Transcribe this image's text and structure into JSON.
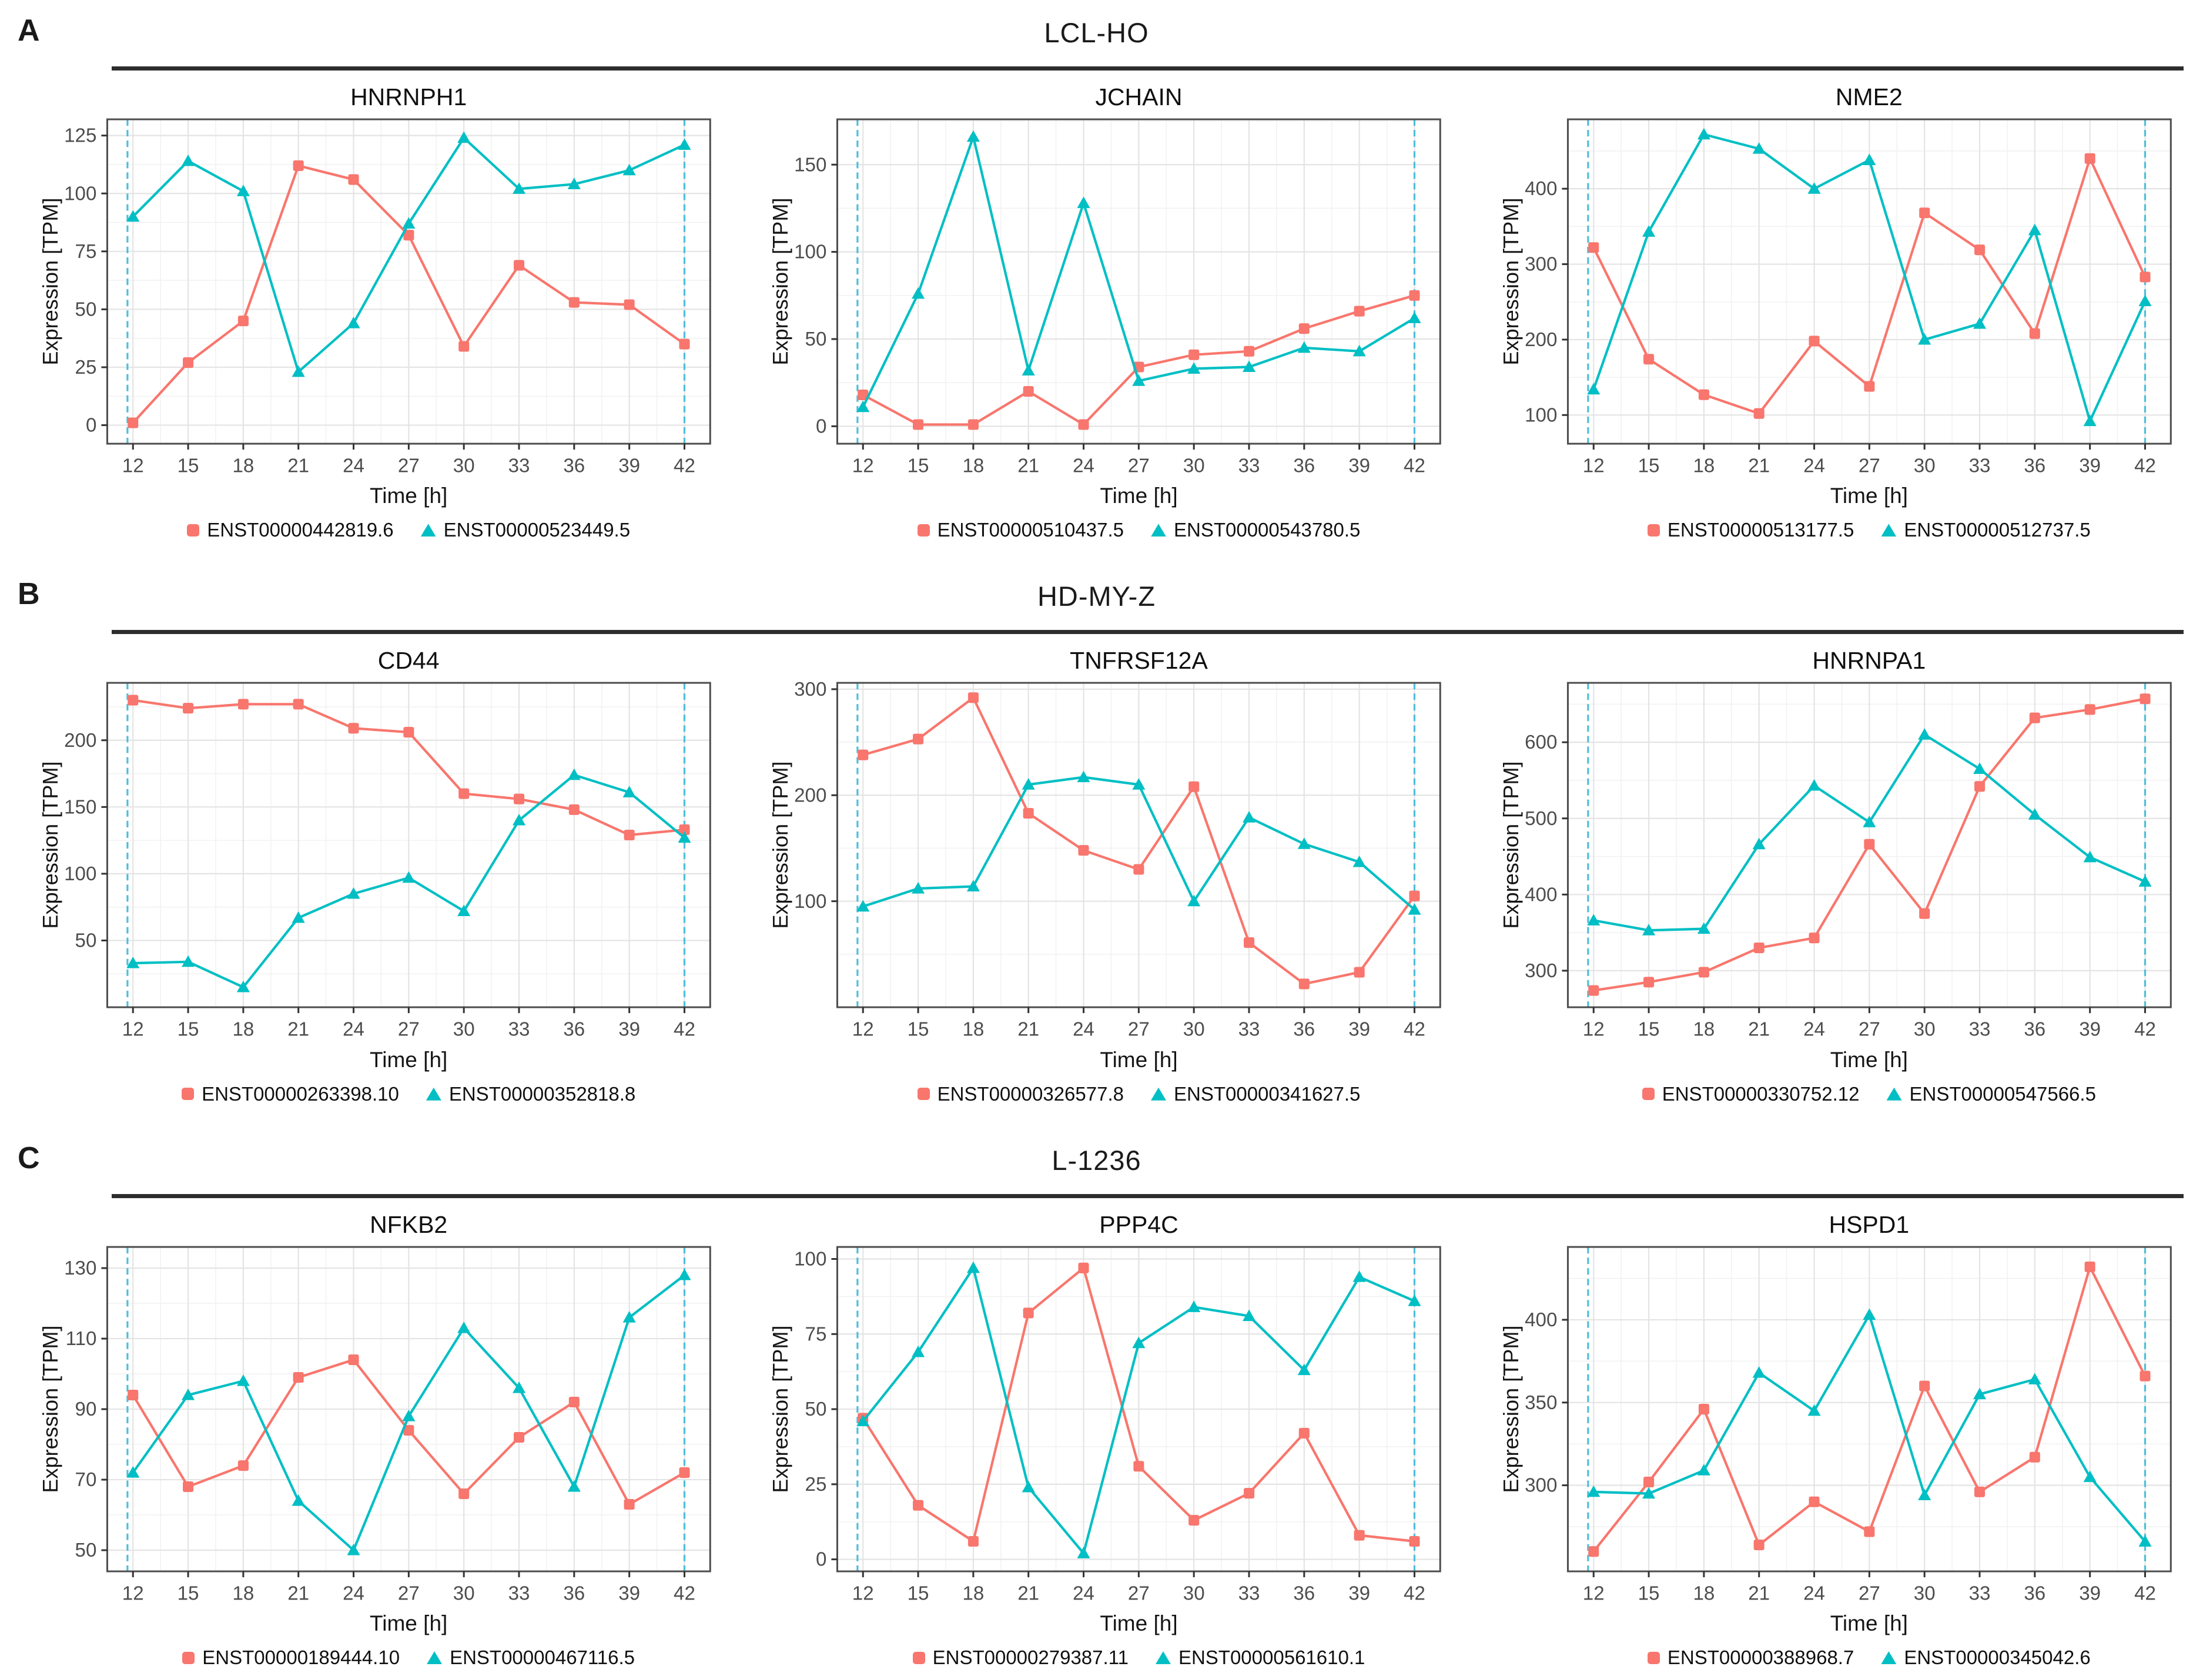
{
  "figure": {
    "panels": [
      {
        "letter": "A",
        "cell_line": "LCL-HO"
      },
      {
        "letter": "B",
        "cell_line": "HD-MY-Z"
      },
      {
        "letter": "C",
        "cell_line": "L-1236"
      }
    ]
  },
  "colors": {
    "red": "#F8766D",
    "teal": "#00BFC4",
    "vline": "#4FBEDB",
    "grid_major": "#E4E4E4",
    "grid_minor": "#F2F2F2",
    "border": "#4D4D4D",
    "tick": "#333333",
    "tick_label": "#4D4D4D",
    "axis_label": "#151515"
  },
  "chart_data": [
    {
      "type": "line",
      "panel": "A",
      "title": "HNRNPH1",
      "xlabel": "Time [h]",
      "ylabel": "Expression [TPM]",
      "x": [
        12,
        15,
        18,
        21,
        24,
        27,
        30,
        33,
        36,
        39,
        42
      ],
      "xticks": [
        12,
        15,
        18,
        21,
        24,
        27,
        30,
        33,
        36,
        39,
        42
      ],
      "xdomain": [
        10.6,
        43.4
      ],
      "yticks": [
        0,
        25,
        50,
        75,
        100,
        125
      ],
      "ylim": [
        -8,
        132
      ],
      "vlines": [
        11.7,
        42
      ],
      "series": [
        {
          "name": "ENST00000442819.6",
          "color": "#F8766D",
          "marker": "square",
          "values": [
            1,
            27,
            45,
            112,
            106,
            82,
            34,
            69,
            53,
            52,
            35
          ]
        },
        {
          "name": "ENST00000523449.5",
          "color": "#00BFC4",
          "marker": "triangle",
          "values": [
            90,
            114,
            101,
            23,
            44,
            87,
            124,
            102,
            104,
            110,
            121
          ]
        }
      ]
    },
    {
      "type": "line",
      "panel": "A",
      "title": "JCHAIN",
      "xlabel": "Time [h]",
      "ylabel": "Expression [TPM]",
      "x": [
        12,
        15,
        18,
        21,
        24,
        27,
        30,
        33,
        36,
        39,
        42
      ],
      "xticks": [
        12,
        15,
        18,
        21,
        24,
        27,
        30,
        33,
        36,
        39,
        42
      ],
      "xdomain": [
        10.6,
        43.4
      ],
      "yticks": [
        0,
        50,
        100,
        150
      ],
      "ylim": [
        -10,
        176
      ],
      "vlines": [
        11.7,
        42
      ],
      "series": [
        {
          "name": "ENST00000510437.5",
          "color": "#F8766D",
          "marker": "square",
          "values": [
            18,
            1,
            1,
            20,
            1,
            34,
            41,
            43,
            56,
            66,
            75
          ]
        },
        {
          "name": "ENST00000543780.5",
          "color": "#00BFC4",
          "marker": "triangle",
          "values": [
            11,
            76,
            166,
            32,
            128,
            26,
            33,
            34,
            45,
            43,
            62
          ]
        }
      ]
    },
    {
      "type": "line",
      "panel": "A",
      "title": "NME2",
      "xlabel": "Time [h]",
      "ylabel": "Expression [TPM]",
      "x": [
        12,
        15,
        18,
        21,
        24,
        27,
        30,
        33,
        36,
        39,
        42
      ],
      "xticks": [
        12,
        15,
        18,
        21,
        24,
        27,
        30,
        33,
        36,
        39,
        42
      ],
      "xdomain": [
        10.6,
        43.4
      ],
      "yticks": [
        100,
        200,
        300,
        400
      ],
      "ylim": [
        62,
        492
      ],
      "vlines": [
        11.7,
        42
      ],
      "series": [
        {
          "name": "ENST00000513177.5",
          "color": "#F8766D",
          "marker": "square",
          "values": [
            322,
            174,
            127,
            102,
            198,
            138,
            368,
            319,
            208,
            440,
            283
          ]
        },
        {
          "name": "ENST00000512737.5",
          "color": "#00BFC4",
          "marker": "triangle",
          "values": [
            134,
            343,
            472,
            453,
            400,
            438,
            200,
            221,
            345,
            92,
            251
          ]
        }
      ]
    },
    {
      "type": "line",
      "panel": "B",
      "title": "CD44",
      "xlabel": "Time [h]",
      "ylabel": "Expression [TPM]",
      "x": [
        12,
        15,
        18,
        21,
        24,
        27,
        30,
        33,
        36,
        39,
        42
      ],
      "xticks": [
        12,
        15,
        18,
        21,
        24,
        27,
        30,
        33,
        36,
        39,
        42
      ],
      "xdomain": [
        10.6,
        43.4
      ],
      "yticks": [
        50,
        100,
        150,
        200
      ],
      "ylim": [
        0,
        243
      ],
      "vlines": [
        11.7,
        42
      ],
      "series": [
        {
          "name": "ENST00000263398.10",
          "color": "#F8766D",
          "marker": "square",
          "values": [
            230,
            224,
            227,
            227,
            209,
            206,
            160,
            156,
            148,
            129,
            133
          ]
        },
        {
          "name": "ENST00000352818.8",
          "color": "#00BFC4",
          "marker": "triangle",
          "values": [
            33,
            34,
            15,
            67,
            85,
            97,
            72,
            140,
            174,
            161,
            127
          ]
        }
      ]
    },
    {
      "type": "line",
      "panel": "B",
      "title": "TNFRSF12A",
      "xlabel": "Time [h]",
      "ylabel": "Expression [TPM]",
      "x": [
        12,
        15,
        18,
        21,
        24,
        27,
        30,
        33,
        36,
        39,
        42
      ],
      "xticks": [
        12,
        15,
        18,
        21,
        24,
        27,
        30,
        33,
        36,
        39,
        42
      ],
      "xdomain": [
        10.6,
        43.4
      ],
      "yticks": [
        100,
        200,
        300
      ],
      "ylim": [
        0,
        306
      ],
      "vlines": [
        11.7,
        42
      ],
      "series": [
        {
          "name": "ENST00000326577.8",
          "color": "#F8766D",
          "marker": "square",
          "values": [
            238,
            253,
            292,
            183,
            148,
            130,
            208,
            61,
            22,
            33,
            105
          ]
        },
        {
          "name": "ENST00000341627.5",
          "color": "#00BFC4",
          "marker": "triangle",
          "values": [
            95,
            112,
            114,
            210,
            217,
            210,
            100,
            179,
            154,
            137,
            92
          ]
        }
      ]
    },
    {
      "type": "line",
      "panel": "B",
      "title": "HNRNPA1",
      "xlabel": "Time [h]",
      "ylabel": "Expression [TPM]",
      "x": [
        12,
        15,
        18,
        21,
        24,
        27,
        30,
        33,
        36,
        39,
        42
      ],
      "xticks": [
        12,
        15,
        18,
        21,
        24,
        27,
        30,
        33,
        36,
        39,
        42
      ],
      "xdomain": [
        10.6,
        43.4
      ],
      "yticks": [
        300,
        400,
        500,
        600
      ],
      "ylim": [
        252,
        678
      ],
      "vlines": [
        11.7,
        42
      ],
      "series": [
        {
          "name": "ENST00000330752.12",
          "color": "#F8766D",
          "marker": "square",
          "values": [
            274,
            285,
            298,
            330,
            343,
            466,
            375,
            542,
            632,
            643,
            657
          ]
        },
        {
          "name": "ENST00000547566.5",
          "color": "#00BFC4",
          "marker": "triangle",
          "values": [
            366,
            353,
            355,
            466,
            543,
            495,
            610,
            565,
            505,
            449,
            417
          ]
        }
      ]
    },
    {
      "type": "line",
      "panel": "C",
      "title": "NFKB2",
      "xlabel": "Time [h]",
      "ylabel": "Expression [TPM]",
      "x": [
        12,
        15,
        18,
        21,
        24,
        27,
        30,
        33,
        36,
        39,
        42
      ],
      "xticks": [
        12,
        15,
        18,
        21,
        24,
        27,
        30,
        33,
        36,
        39,
        42
      ],
      "xdomain": [
        10.6,
        43.4
      ],
      "yticks": [
        50,
        70,
        90,
        110,
        130
      ],
      "ylim": [
        44,
        136
      ],
      "vlines": [
        11.7,
        42
      ],
      "series": [
        {
          "name": "ENST00000189444.10",
          "color": "#F8766D",
          "marker": "square",
          "values": [
            94,
            68,
            74,
            99,
            104,
            84,
            66,
            82,
            92,
            63,
            72
          ]
        },
        {
          "name": "ENST00000467116.5",
          "color": "#00BFC4",
          "marker": "triangle",
          "values": [
            72,
            94,
            98,
            64,
            50,
            88,
            113,
            96,
            68,
            116,
            128
          ]
        }
      ]
    },
    {
      "type": "line",
      "panel": "C",
      "title": "PPP4C",
      "xlabel": "Time [h]",
      "ylabel": "Expression [TPM]",
      "x": [
        12,
        15,
        18,
        21,
        24,
        27,
        30,
        33,
        36,
        39,
        42
      ],
      "xticks": [
        12,
        15,
        18,
        21,
        24,
        27,
        30,
        33,
        36,
        39,
        42
      ],
      "xdomain": [
        10.6,
        43.4
      ],
      "yticks": [
        0,
        25,
        50,
        75,
        100
      ],
      "ylim": [
        -4,
        104
      ],
      "vlines": [
        11.7,
        42
      ],
      "series": [
        {
          "name": "ENST00000279387.11",
          "color": "#F8766D",
          "marker": "square",
          "values": [
            47,
            18,
            6,
            82,
            97,
            31,
            13,
            22,
            42,
            8,
            6
          ]
        },
        {
          "name": "ENST00000561610.1",
          "color": "#00BFC4",
          "marker": "triangle",
          "values": [
            46,
            69,
            97,
            24,
            2,
            72,
            84,
            81,
            63,
            94,
            86
          ]
        }
      ]
    },
    {
      "type": "line",
      "panel": "C",
      "title": "HSPD1",
      "xlabel": "Time [h]",
      "ylabel": "Expression [TPM]",
      "x": [
        12,
        15,
        18,
        21,
        24,
        27,
        30,
        33,
        36,
        39,
        42
      ],
      "xticks": [
        12,
        15,
        18,
        21,
        24,
        27,
        30,
        33,
        36,
        39,
        42
      ],
      "xdomain": [
        10.6,
        43.4
      ],
      "yticks": [
        300,
        350,
        400
      ],
      "ylim": [
        248,
        444
      ],
      "vlines": [
        11.7,
        42
      ],
      "series": [
        {
          "name": "ENST00000388968.7",
          "color": "#F8766D",
          "marker": "square",
          "values": [
            260,
            302,
            346,
            264,
            290,
            272,
            360,
            296,
            317,
            432,
            366
          ]
        },
        {
          "name": "ENST00000345042.6",
          "color": "#00BFC4",
          "marker": "triangle",
          "values": [
            296,
            295,
            309,
            368,
            345,
            403,
            294,
            355,
            364,
            305,
            266
          ]
        }
      ]
    }
  ]
}
